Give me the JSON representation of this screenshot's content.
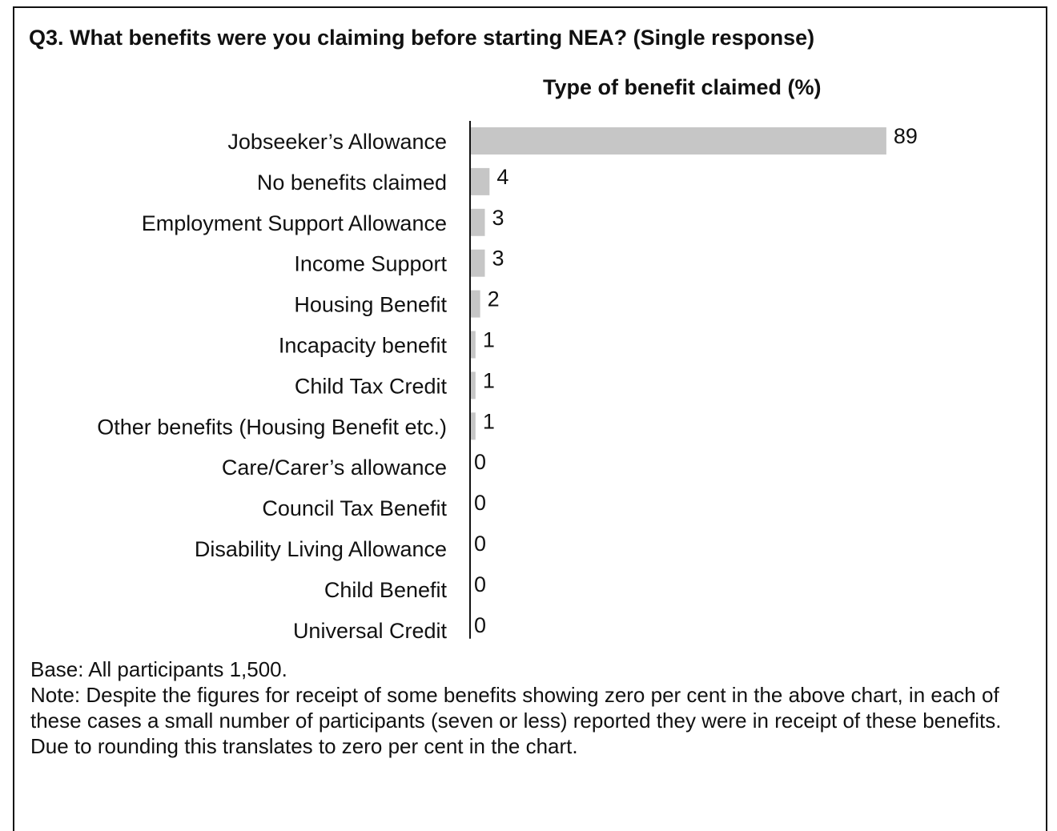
{
  "question": "Q3. What benefits were you claiming before starting NEA? (Single response)",
  "chart_data": {
    "type": "bar",
    "orientation": "horizontal",
    "title": "Type of benefit claimed (%)",
    "categories": [
      "Jobseeker’s Allowance",
      "No benefits claimed",
      "Employment Support Allowance",
      "Income Support",
      "Housing Benefit",
      "Incapacity benefit",
      "Child Tax Credit",
      "Other benefits (Housing Benefit etc.)",
      "Care/Carer’s allowance",
      "Council Tax Benefit",
      "Disability Living Allowance",
      "Child Benefit",
      "Universal Credit"
    ],
    "values": [
      89,
      4,
      3,
      3,
      2,
      1,
      1,
      1,
      0,
      0,
      0,
      0,
      0
    ],
    "xlim": [
      0,
      100
    ],
    "bar_color": "#c6c6c6",
    "data_labels": true,
    "grid": false
  },
  "footer": {
    "base": "Base: All participants 1,500.",
    "note": "Note: Despite the figures for receipt of some benefits showing zero per cent in the above chart, in each of these cases a small number of participants (seven or less) reported they were in receipt of these benefits. Due to rounding this translates to zero per cent in the chart."
  }
}
